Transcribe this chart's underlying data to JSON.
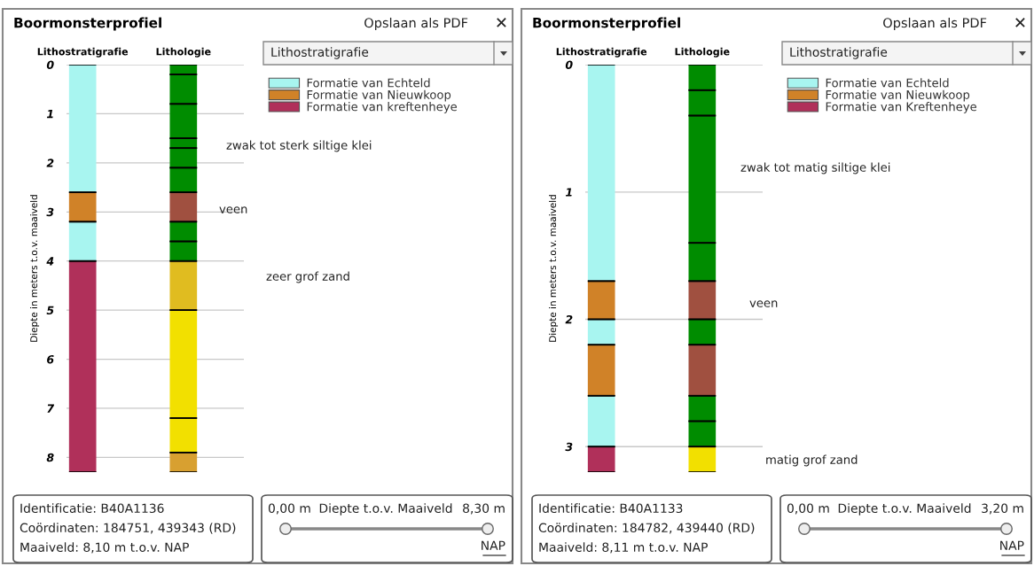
{
  "chart_data": [
    {
      "type": "bar",
      "stacked": true,
      "title": "Boormonsterprofiel",
      "ylabel": "Diepte in meters t.o.v. maaiveld",
      "categories": [
        "Lithostratigrafie",
        "Lithologie"
      ],
      "ylim": [
        8.3,
        0
      ],
      "yticks": [
        0,
        1,
        2,
        3,
        4,
        5,
        6,
        7,
        8
      ],
      "grid": "y",
      "legend": "top right",
      "series": [
        {
          "name": "Formatie van Echteld",
          "color": "#a8f5f0",
          "values": [
            2.6,
            null
          ]
        },
        {
          "name": "Formatie van Nieuwkoop",
          "color": "#d08228",
          "values": [
            0.6,
            null
          ]
        },
        {
          "color": "#a8f5f0",
          "values": [
            0.8,
            null
          ]
        },
        {
          "name": "Formatie van kreftenheye",
          "color": "#b0305a",
          "values": [
            4.3,
            null
          ]
        },
        {
          "color": "#008c00",
          "values": [
            null,
            0.2
          ]
        },
        {
          "color": "#008c00",
          "values": [
            null,
            0.6
          ]
        },
        {
          "color": "#008c00",
          "values": [
            null,
            0.7
          ]
        },
        {
          "color": "#008c00",
          "values": [
            null,
            0.2
          ]
        },
        {
          "color": "#008c00",
          "values": [
            null,
            0.4
          ]
        },
        {
          "color": "#008c00",
          "values": [
            null,
            0.5
          ]
        },
        {
          "color": "#a05040",
          "values": [
            null,
            0.6
          ]
        },
        {
          "color": "#008c00",
          "values": [
            null,
            0.4
          ]
        },
        {
          "color": "#008c00",
          "values": [
            null,
            0.4
          ]
        },
        {
          "color": "#e0bc20",
          "values": [
            null,
            1.0
          ]
        },
        {
          "color": "#f2e000",
          "values": [
            null,
            2.2
          ]
        },
        {
          "color": "#f2e000",
          "values": [
            null,
            0.7
          ]
        },
        {
          "color": "#d8a030",
          "values": [
            null,
            0.4
          ]
        }
      ],
      "annotations": [
        "zwak tot sterk siltige klei",
        "veen",
        "zeer grof zand",
        "Opslaan als PDF",
        "✕",
        "Lithostratigrafie",
        "Identificatie: B40A1136",
        "Coördinaten: 184751, 439343 (RD)",
        "Maaiveld: 8,10 m t.o.v. NAP",
        "0,00 m",
        "Diepte t.o.v. Maaiveld",
        "8,30 m",
        "NAP"
      ]
    },
    {
      "type": "bar",
      "stacked": true,
      "title": "Boormonsterprofiel",
      "ylabel": "Diepte in meters t.o.v. maaiveld",
      "categories": [
        "Lithostratigrafie",
        "Lithologie"
      ],
      "ylim": [
        3.2,
        0
      ],
      "yticks": [
        0,
        1,
        2,
        3
      ],
      "grid": "y",
      "legend": "top right",
      "series": [
        {
          "name": "Formatie van Echteld",
          "color": "#a8f5f0",
          "values": [
            1.7,
            null
          ]
        },
        {
          "name": "Formatie van Nieuwkoop",
          "color": "#d08228",
          "values": [
            0.3,
            null
          ]
        },
        {
          "color": "#a8f5f0",
          "values": [
            0.2,
            null
          ]
        },
        {
          "color": "#d08228",
          "values": [
            0.4,
            null
          ]
        },
        {
          "color": "#a8f5f0",
          "values": [
            0.4,
            null
          ]
        },
        {
          "name": "Formatie van Kreftenheye",
          "color": "#b0305a",
          "values": [
            0.2,
            null
          ]
        },
        {
          "color": "#008c00",
          "values": [
            null,
            0.2
          ]
        },
        {
          "color": "#008c00",
          "values": [
            null,
            0.2
          ]
        },
        {
          "color": "#008c00",
          "values": [
            null,
            1.0
          ]
        },
        {
          "color": "#008c00",
          "values": [
            null,
            0.3
          ]
        },
        {
          "color": "#a05040",
          "values": [
            null,
            0.3
          ]
        },
        {
          "color": "#008c00",
          "values": [
            null,
            0.2
          ]
        },
        {
          "color": "#a05040",
          "values": [
            null,
            0.4
          ]
        },
        {
          "color": "#008c00",
          "values": [
            null,
            0.2
          ]
        },
        {
          "color": "#008c00",
          "values": [
            null,
            0.2
          ]
        },
        {
          "color": "#f2e000",
          "values": [
            null,
            0.2
          ]
        }
      ],
      "annotations": [
        "zwak tot matig siltige klei",
        "veen",
        "matig grof zand",
        "Opslaan als PDF",
        "✕",
        "Lithostratigrafie",
        "Identificatie: B40A1133",
        "Coördinaten: 184782, 439440 (RD)",
        "Maaiveld: 8,11 m t.o.v. NAP",
        "0,00 m",
        "Diepte t.o.v. Maaiveld",
        "3,20 m",
        "NAP"
      ]
    }
  ]
}
